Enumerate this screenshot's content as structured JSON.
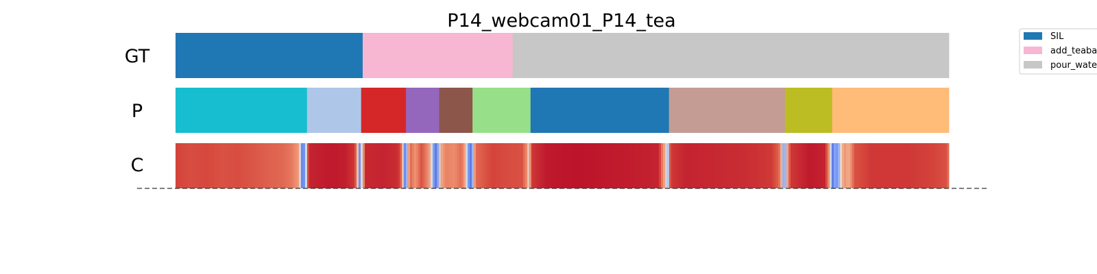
{
  "chart_data": {
    "type": "segmentation",
    "title": "P14_webcam01_P14_tea",
    "x_range": [
      0,
      1000
    ],
    "rows": [
      {
        "label": "GT",
        "segments": [
          {
            "start": 0,
            "end": 242,
            "color": "#1f77b4"
          },
          {
            "start": 242,
            "end": 436,
            "color": "#f7b6d2"
          },
          {
            "start": 436,
            "end": 1000,
            "color": "#c7c7c7"
          }
        ]
      },
      {
        "label": "P",
        "segments": [
          {
            "start": 0,
            "end": 170,
            "color": "#17becf"
          },
          {
            "start": 170,
            "end": 240,
            "color": "#aec7e8"
          },
          {
            "start": 240,
            "end": 298,
            "color": "#d62728"
          },
          {
            "start": 298,
            "end": 341,
            "color": "#9467bd"
          },
          {
            "start": 341,
            "end": 384,
            "color": "#8c564b"
          },
          {
            "start": 384,
            "end": 459,
            "color": "#98df8a"
          },
          {
            "start": 459,
            "end": 638,
            "color": "#1f77b4"
          },
          {
            "start": 638,
            "end": 788,
            "color": "#c49c94"
          },
          {
            "start": 788,
            "end": 849,
            "color": "#bcbd22"
          },
          {
            "start": 849,
            "end": 1000,
            "color": "#ffbb78"
          }
        ]
      }
    ],
    "confidence": {
      "label": "C",
      "colormap": "coolwarm",
      "values": [
        [
          0,
          0.88
        ],
        [
          20,
          0.86
        ],
        [
          40,
          0.87
        ],
        [
          60,
          0.85
        ],
        [
          80,
          0.86
        ],
        [
          100,
          0.84
        ],
        [
          120,
          0.82
        ],
        [
          140,
          0.8
        ],
        [
          150,
          0.77
        ],
        [
          155,
          0.72
        ],
        [
          160,
          0.65
        ],
        [
          162,
          0.25
        ],
        [
          165,
          0.12
        ],
        [
          168,
          0.35
        ],
        [
          172,
          0.94
        ],
        [
          200,
          0.96
        ],
        [
          220,
          0.95
        ],
        [
          232,
          0.9
        ],
        [
          236,
          0.5
        ],
        [
          238,
          0.2
        ],
        [
          241,
          0.55
        ],
        [
          246,
          0.93
        ],
        [
          270,
          0.94
        ],
        [
          288,
          0.92
        ],
        [
          292,
          0.8
        ],
        [
          295,
          0.45
        ],
        [
          297,
          0.12
        ],
        [
          300,
          0.4
        ],
        [
          303,
          0.82
        ],
        [
          310,
          0.7
        ],
        [
          318,
          0.85
        ],
        [
          325,
          0.75
        ],
        [
          330,
          0.6
        ],
        [
          333,
          0.3
        ],
        [
          336,
          0.12
        ],
        [
          339,
          0.25
        ],
        [
          342,
          0.6
        ],
        [
          350,
          0.75
        ],
        [
          360,
          0.72
        ],
        [
          370,
          0.8
        ],
        [
          375,
          0.6
        ],
        [
          378,
          0.3
        ],
        [
          381,
          0.1
        ],
        [
          384,
          0.3
        ],
        [
          388,
          0.8
        ],
        [
          410,
          0.88
        ],
        [
          430,
          0.86
        ],
        [
          448,
          0.85
        ],
        [
          455,
          0.7
        ],
        [
          457,
          0.45
        ],
        [
          460,
          0.9
        ],
        [
          480,
          0.96
        ],
        [
          520,
          0.97
        ],
        [
          560,
          0.96
        ],
        [
          600,
          0.95
        ],
        [
          625,
          0.94
        ],
        [
          633,
          0.6
        ],
        [
          636,
          0.25
        ],
        [
          640,
          0.9
        ],
        [
          660,
          0.94
        ],
        [
          700,
          0.93
        ],
        [
          740,
          0.92
        ],
        [
          770,
          0.9
        ],
        [
          780,
          0.82
        ],
        [
          785,
          0.5
        ],
        [
          787,
          0.12
        ],
        [
          790,
          0.55
        ],
        [
          795,
          0.9
        ],
        [
          820,
          0.96
        ],
        [
          840,
          0.94
        ],
        [
          845,
          0.7
        ],
        [
          848,
          0.35
        ],
        [
          850,
          0.12
        ],
        [
          853,
          0.3
        ],
        [
          856,
          0.2
        ],
        [
          860,
          0.5
        ],
        [
          865,
          0.7
        ],
        [
          870,
          0.6
        ],
        [
          878,
          0.85
        ],
        [
          900,
          0.9
        ],
        [
          950,
          0.9
        ],
        [
          980,
          0.88
        ],
        [
          998,
          0.85
        ],
        [
          1000,
          0.7
        ]
      ]
    },
    "legend": {
      "placement": "top-right",
      "entries": [
        {
          "label": "SIL",
          "color": "#1f77b4"
        },
        {
          "label": "add_teaba",
          "color": "#f7b6d2"
        },
        {
          "label": "pour_wate",
          "color": "#c7c7c7"
        }
      ]
    }
  }
}
